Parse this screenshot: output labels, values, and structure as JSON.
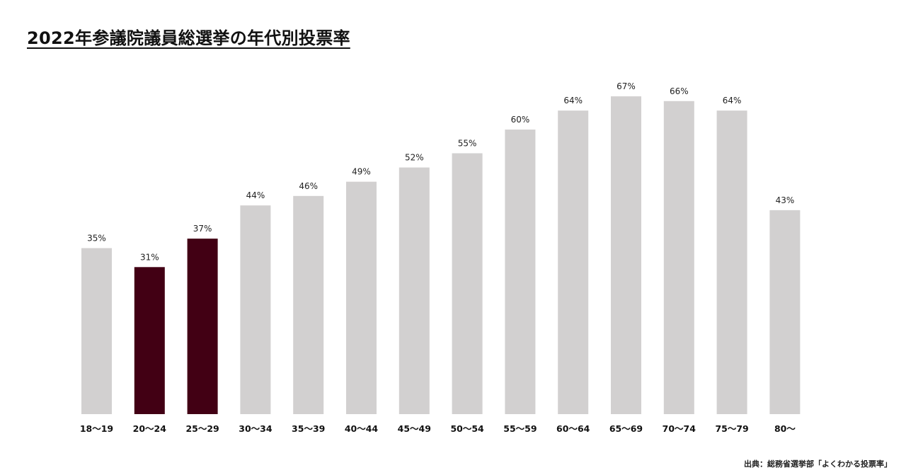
{
  "chart_data": {
    "type": "bar",
    "title": "2022年参議院議員総選挙の年代別投票率",
    "categories": [
      "18〜19",
      "20〜24",
      "25〜29",
      "30〜34",
      "35〜39",
      "40〜44",
      "45〜49",
      "50〜54",
      "55〜59",
      "60〜64",
      "65〜69",
      "70〜74",
      "75〜79",
      "80〜"
    ],
    "values": [
      35,
      31,
      37,
      44,
      46,
      49,
      52,
      55,
      60,
      64,
      67,
      66,
      64,
      43
    ],
    "value_labels": [
      "35%",
      "31%",
      "37%",
      "44%",
      "46%",
      "49%",
      "52%",
      "55%",
      "60%",
      "64%",
      "67%",
      "66%",
      "64%",
      "43%"
    ],
    "unit": "%",
    "ylim": [
      0,
      100
    ],
    "highlighted_categories": [
      "20〜24",
      "25〜29"
    ],
    "colors": {
      "default_bar": "#d2d0d0",
      "highlight_bar": "#420014"
    },
    "grid": false,
    "legend": "none",
    "xlabel": "",
    "ylabel": ""
  },
  "footer": {
    "source": "出典：総務省選挙部「よくわかる投票率」"
  }
}
